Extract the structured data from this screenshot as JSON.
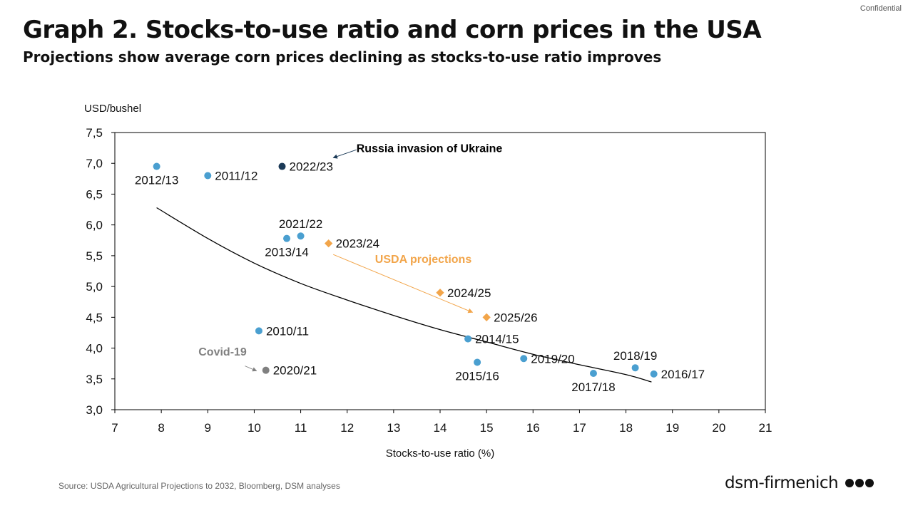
{
  "header": {
    "confidential": "Confidential",
    "title": "Graph 2. Stocks-to-use ratio and corn prices in the USA",
    "subtitle": "Projections show average corn prices declining as stocks-to-use ratio improves"
  },
  "footer": {
    "source": "Source: USDA Agricultural Projections to 2032, Bloomberg, DSM analyses",
    "logo_text": "dsm-firmenich"
  },
  "colors": {
    "historical": "#4a9fd0",
    "highlight": "#1b3a57",
    "projection": "#f2a54a",
    "covid": "#808080",
    "trend": "#000000"
  },
  "chart_data": {
    "type": "scatter",
    "ylabel": "USD/bushel",
    "xlabel": "Stocks-to-use ratio (%)",
    "xlim": [
      7,
      21
    ],
    "ylim": [
      3.0,
      7.5
    ],
    "x_ticks": [
      "7",
      "8",
      "9",
      "10",
      "11",
      "12",
      "13",
      "14",
      "15",
      "16",
      "17",
      "18",
      "19",
      "20",
      "21"
    ],
    "y_ticks": [
      "3,0",
      "3,5",
      "4,0",
      "4,5",
      "5,0",
      "5,5",
      "6,0",
      "6,5",
      "7,0",
      "7,5"
    ],
    "grid": false,
    "points": [
      {
        "label": "2012/13",
        "x": 7.9,
        "y": 6.95,
        "group": "historical",
        "label_pos": "below"
      },
      {
        "label": "2011/12",
        "x": 9.0,
        "y": 6.8,
        "group": "historical",
        "label_pos": "right"
      },
      {
        "label": "2022/23",
        "x": 10.6,
        "y": 6.95,
        "group": "highlight",
        "label_pos": "right"
      },
      {
        "label": "2021/22",
        "x": 11.0,
        "y": 5.82,
        "group": "historical",
        "label_pos": "above"
      },
      {
        "label": "2013/14",
        "x": 10.7,
        "y": 5.78,
        "group": "historical",
        "label_pos": "below"
      },
      {
        "label": "2023/24",
        "x": 11.6,
        "y": 5.7,
        "group": "projection",
        "label_pos": "right"
      },
      {
        "label": "2024/25",
        "x": 14.0,
        "y": 4.9,
        "group": "projection",
        "label_pos": "right"
      },
      {
        "label": "2025/26",
        "x": 15.0,
        "y": 4.5,
        "group": "projection",
        "label_pos": "right"
      },
      {
        "label": "2010/11",
        "x": 10.1,
        "y": 4.28,
        "group": "historical",
        "label_pos": "right"
      },
      {
        "label": "2014/15",
        "x": 14.6,
        "y": 4.15,
        "group": "historical",
        "label_pos": "right"
      },
      {
        "label": "2020/21",
        "x": 10.25,
        "y": 3.64,
        "group": "covid",
        "label_pos": "right"
      },
      {
        "label": "2015/16",
        "x": 14.8,
        "y": 3.77,
        "group": "historical",
        "label_pos": "below"
      },
      {
        "label": "2019/20",
        "x": 15.8,
        "y": 3.83,
        "group": "historical",
        "label_pos": "right"
      },
      {
        "label": "2017/18",
        "x": 17.3,
        "y": 3.59,
        "group": "historical",
        "label_pos": "below"
      },
      {
        "label": "2018/19",
        "x": 18.2,
        "y": 3.68,
        "group": "historical",
        "label_pos": "above"
      },
      {
        "label": "2016/17",
        "x": 18.6,
        "y": 3.58,
        "group": "historical",
        "label_pos": "right"
      }
    ],
    "trendline": [
      [
        7.9,
        6.28
      ],
      [
        9,
        5.78
      ],
      [
        10,
        5.38
      ],
      [
        11,
        5.05
      ],
      [
        12,
        4.78
      ],
      [
        13,
        4.53
      ],
      [
        14,
        4.3
      ],
      [
        15,
        4.1
      ],
      [
        16,
        3.9
      ],
      [
        17,
        3.73
      ],
      [
        18,
        3.57
      ],
      [
        18.55,
        3.45
      ]
    ],
    "annotations": [
      {
        "name": "russia-annotation",
        "text": "Russia invasion of Ukraine",
        "x": 12.2,
        "y": 7.25,
        "color": "#000000",
        "arrow": {
          "from": [
            12.2,
            7.22
          ],
          "to": [
            11.7,
            7.09
          ]
        }
      },
      {
        "name": "usda-projections-annotation",
        "text": "USDA projections",
        "x": 12.6,
        "y": 5.45,
        "color": "#f2a54a",
        "arrow": {
          "from": [
            11.7,
            5.52
          ],
          "to": [
            14.7,
            4.58
          ]
        }
      },
      {
        "name": "covid-annotation",
        "text": "Covid-19",
        "x": 8.8,
        "y": 3.95,
        "color": "#808080",
        "arrow": {
          "from": [
            9.8,
            3.71
          ],
          "to": [
            10.05,
            3.63
          ]
        }
      }
    ]
  }
}
